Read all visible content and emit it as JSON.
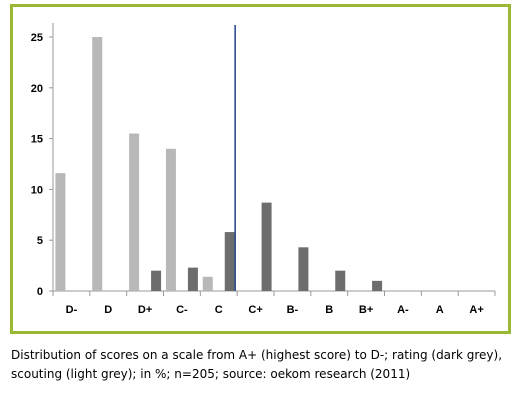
{
  "chart_data": {
    "type": "bar",
    "categories": [
      "D-",
      "D",
      "D+",
      "C-",
      "C",
      "C+",
      "B-",
      "B",
      "B+",
      "A-",
      "A",
      "A+"
    ],
    "series": [
      {
        "name": "scouting",
        "color": "#b8b8b8",
        "values": [
          11.6,
          25,
          15.5,
          14,
          1.4,
          0,
          0,
          0,
          0,
          0,
          0,
          0
        ]
      },
      {
        "name": "rating",
        "color": "#6d6d6d",
        "values": [
          0,
          0,
          2,
          2.3,
          5.8,
          8.7,
          4.3,
          2,
          1,
          0,
          0,
          0
        ]
      }
    ],
    "y_ticks": [
      0,
      5,
      10,
      15,
      20,
      25
    ],
    "ylim": [
      0,
      25
    ],
    "grid": false,
    "divider_line": {
      "between": [
        "C",
        "C+"
      ],
      "color": "#2a4f8f"
    },
    "axis_color": "#999999",
    "frame_color": "#99b833"
  },
  "caption": "Distribution of scores on a scale from A+ (highest score) to D-; rating (dark grey), scouting (light grey); in %; n=205; source: oekom research (2011)"
}
